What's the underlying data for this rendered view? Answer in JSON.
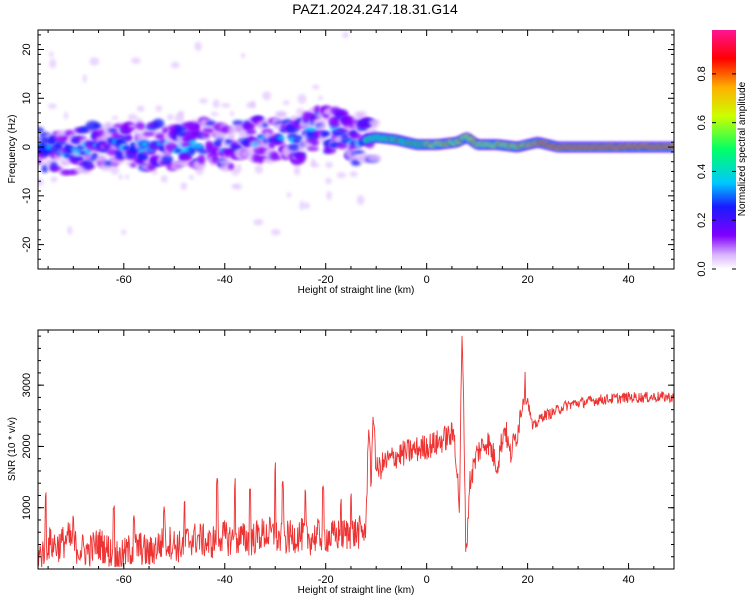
{
  "title": "PAZ1.2024.247.18.31.G14",
  "colors": {
    "line": "#ee3333",
    "axis": "#000000",
    "background": "#ffffff"
  },
  "colormap": [
    "#ffffff",
    "#d9b3ff",
    "#8000ff",
    "#1a1aff",
    "#00c8ff",
    "#00ff66",
    "#ccff00",
    "#ffb000",
    "#ff0000",
    "#ff1493"
  ],
  "chart_data": [
    {
      "type": "heatmap",
      "xlabel": "Height of straight line (km)",
      "ylabel": "Frequency (Hz)",
      "xlim": [
        -77,
        49
      ],
      "ylim": [
        -25,
        24
      ],
      "xticks": [
        -60,
        -40,
        -20,
        0,
        20,
        40
      ],
      "yticks": [
        -20,
        -10,
        0,
        10,
        20
      ],
      "colorbar_label": "Normalized spectral amplitude",
      "colorbar_ticks": [
        "0.0",
        "0.2",
        "0.4",
        "0.6",
        "0.8"
      ],
      "colorbar_range": [
        0,
        0.98
      ],
      "centerline_frequency": [
        [
          -76,
          0
        ],
        [
          -72,
          -1
        ],
        [
          -68,
          -0.5
        ],
        [
          -64,
          0.5
        ],
        [
          -60,
          0.5
        ],
        [
          -56,
          0
        ],
        [
          -52,
          0.5
        ],
        [
          -48,
          0
        ],
        [
          -44,
          1
        ],
        [
          -40,
          0
        ],
        [
          -36,
          1
        ],
        [
          -32,
          1.5
        ],
        [
          -28,
          2.5
        ],
        [
          -25,
          1.5
        ],
        [
          -22,
          3.5
        ],
        [
          -18,
          3
        ],
        [
          -14,
          1
        ],
        [
          -10,
          2
        ],
        [
          -6,
          1.5
        ],
        [
          -2,
          0.5
        ],
        [
          2,
          0.5
        ],
        [
          6,
          1
        ],
        [
          8,
          2
        ],
        [
          10,
          0.5
        ],
        [
          14,
          0.5
        ],
        [
          18,
          0
        ],
        [
          22,
          1
        ],
        [
          26,
          0
        ],
        [
          30,
          0
        ],
        [
          40,
          0
        ],
        [
          49,
          0
        ]
      ],
      "scatter_spread_hz": {
        "below_minus10km": 4.5,
        "above_minus10km": 0.6
      }
    },
    {
      "type": "line",
      "xlabel": "Height of straight line (km)",
      "ylabel": "SNR (10 * v/v)",
      "xlim": [
        -77,
        49
      ],
      "ylim": [
        0,
        3900
      ],
      "xticks": [
        -60,
        -40,
        -20,
        0,
        20,
        40
      ],
      "yticks": [
        1000,
        2000,
        3000
      ],
      "series": [
        {
          "values": [
            [
              -77,
              180
            ],
            [
              -75,
              420
            ],
            [
              -73,
              380
            ],
            [
              -71,
              500
            ],
            [
              -69,
              330
            ],
            [
              -67,
              290
            ],
            [
              -65,
              420
            ],
            [
              -63,
              300
            ],
            [
              -61,
              150
            ],
            [
              -59,
              300
            ],
            [
              -57,
              360
            ],
            [
              -55,
              250
            ],
            [
              -53,
              400
            ],
            [
              -51,
              450
            ],
            [
              -49,
              360
            ],
            [
              -47,
              480
            ],
            [
              -45,
              500
            ],
            [
              -43,
              400
            ],
            [
              -41,
              550
            ],
            [
              -39,
              480
            ],
            [
              -37,
              500
            ],
            [
              -35,
              470
            ],
            [
              -33,
              560
            ],
            [
              -31,
              580
            ],
            [
              -29,
              480
            ],
            [
              -27,
              520
            ],
            [
              -25,
              560
            ],
            [
              -23,
              500
            ],
            [
              -21,
              560
            ],
            [
              -19,
              520
            ],
            [
              -17,
              560
            ],
            [
              -15,
              580
            ],
            [
              -13,
              600
            ],
            [
              -12,
              650
            ],
            [
              -11.5,
              2500
            ],
            [
              -11,
              1400
            ],
            [
              -10.5,
              2600
            ],
            [
              -10,
              1600
            ],
            [
              -8,
              1750
            ],
            [
              -6,
              1850
            ],
            [
              -4,
              1900
            ],
            [
              -2,
              1950
            ],
            [
              0,
              2000
            ],
            [
              2,
              2050
            ],
            [
              4,
              2150
            ],
            [
              5.5,
              2200
            ],
            [
              6.5,
              1000
            ],
            [
              7,
              3850
            ],
            [
              7.4,
              2300
            ],
            [
              7.8,
              150
            ],
            [
              8.5,
              1400
            ],
            [
              10,
              1900
            ],
            [
              12,
              2100
            ],
            [
              14,
              1700
            ],
            [
              15.5,
              2350
            ],
            [
              16.5,
              1850
            ],
            [
              18,
              2250
            ],
            [
              19.5,
              3000
            ],
            [
              21,
              2300
            ],
            [
              23,
              2500
            ],
            [
              25,
              2550
            ],
            [
              27,
              2650
            ],
            [
              29,
              2700
            ],
            [
              31,
              2720
            ],
            [
              34,
              2760
            ],
            [
              37,
              2780
            ],
            [
              40,
              2800
            ],
            [
              43,
              2800
            ],
            [
              46,
              2810
            ],
            [
              49,
              2800
            ]
          ],
          "noise_amplitude": {
            "below_minus12km": 280,
            "minus12_to_20km": 220,
            "above_20km": 90
          },
          "spikes": [
            [
              -75.5,
              1300
            ],
            [
              -70,
              900
            ],
            [
              -62,
              1150
            ],
            [
              -58,
              900
            ],
            [
              -52,
              1050
            ],
            [
              -48,
              1150
            ],
            [
              -41.5,
              1600
            ],
            [
              -38,
              1500
            ],
            [
              -35,
              1450
            ],
            [
              -30,
              1800
            ],
            [
              -28.5,
              1500
            ],
            [
              -24,
              1300
            ],
            [
              -20.5,
              1350
            ],
            [
              -17,
              1150
            ],
            [
              -15,
              1350
            ]
          ]
        }
      ]
    }
  ]
}
